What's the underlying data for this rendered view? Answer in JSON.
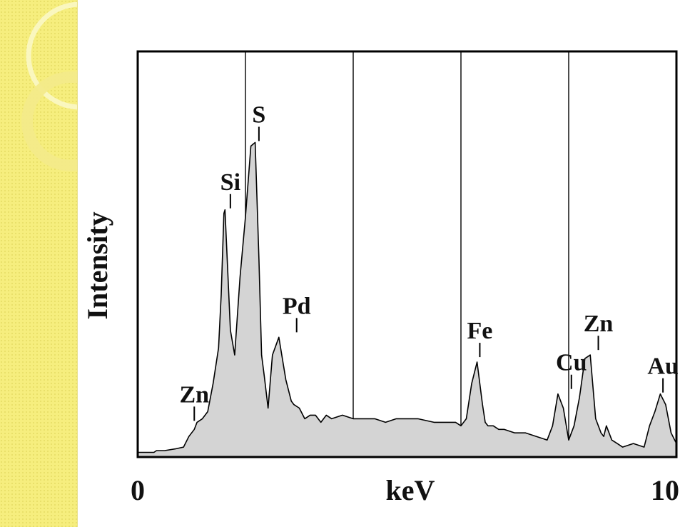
{
  "theme": {
    "strip_color": "#f6ee7e",
    "ring_color": "#fbf7c2",
    "fill_color": "#d4d4d4",
    "line_color": "#000000"
  },
  "chart_data": {
    "type": "area",
    "xlabel": "keV",
    "ylabel": "Intensity",
    "xlim": [
      0,
      10
    ],
    "ylim": [
      0,
      100
    ],
    "xticks": [
      "0",
      "10"
    ],
    "grid_x": [
      2,
      4,
      6,
      8
    ],
    "grid": "vertical lines only",
    "spectrum": {
      "x": [
        0.0,
        0.3,
        0.35,
        0.5,
        0.7,
        0.85,
        0.95,
        1.05,
        1.1,
        1.2,
        1.3,
        1.4,
        1.5,
        1.55,
        1.6,
        1.62,
        1.72,
        1.8,
        1.9,
        2.0,
        2.1,
        2.18,
        2.25,
        2.3,
        2.35,
        2.42,
        2.5,
        2.62,
        2.75,
        2.85,
        2.9,
        3.0,
        3.1,
        3.2,
        3.3,
        3.4,
        3.5,
        3.6,
        3.8,
        4.0,
        4.2,
        4.4,
        4.6,
        4.8,
        5.0,
        5.2,
        5.5,
        5.7,
        5.9,
        6.0,
        6.1,
        6.2,
        6.3,
        6.4,
        6.45,
        6.5,
        6.6,
        6.7,
        6.8,
        7.0,
        7.2,
        7.4,
        7.6,
        7.7,
        7.8,
        7.9,
        8.0,
        8.1,
        8.2,
        8.3,
        8.4,
        8.5,
        8.6,
        8.65,
        8.7,
        8.8,
        8.9,
        9.0,
        9.2,
        9.4,
        9.5,
        9.6,
        9.7,
        9.8,
        9.9,
        10.0
      ],
      "y": [
        0.5,
        0.5,
        1,
        1,
        1.5,
        2,
        5,
        7,
        9,
        10,
        12,
        20,
        30,
        45,
        68,
        69,
        35,
        28,
        50,
        67,
        87,
        88,
        55,
        28,
        22,
        13,
        28,
        33,
        21,
        15,
        14,
        13,
        10,
        11,
        11,
        9,
        11,
        10,
        11,
        10,
        10,
        10,
        9,
        10,
        10,
        10,
        9,
        9,
        9,
        8,
        10,
        20,
        26,
        14,
        9,
        8,
        8,
        7,
        7,
        6,
        6,
        5,
        4,
        8,
        17,
        13,
        4,
        8,
        16,
        27,
        28,
        10,
        6,
        5,
        8,
        4,
        3,
        2,
        3,
        2,
        8,
        12,
        17,
        14,
        6,
        3
      ]
    },
    "annotations": [
      {
        "label": "Zn",
        "x": 1.05,
        "y": 9
      },
      {
        "label": "Si",
        "x": 1.72,
        "y": 69
      },
      {
        "label": "S",
        "x": 2.25,
        "y": 88
      },
      {
        "label": "Pd",
        "x": 2.95,
        "y": 34
      },
      {
        "label": "Fe",
        "x": 6.35,
        "y": 27
      },
      {
        "label": "Cu",
        "x": 8.05,
        "y": 18
      },
      {
        "label": "Zn",
        "x": 8.55,
        "y": 29
      },
      {
        "label": "Au",
        "x": 9.75,
        "y": 17
      }
    ]
  }
}
